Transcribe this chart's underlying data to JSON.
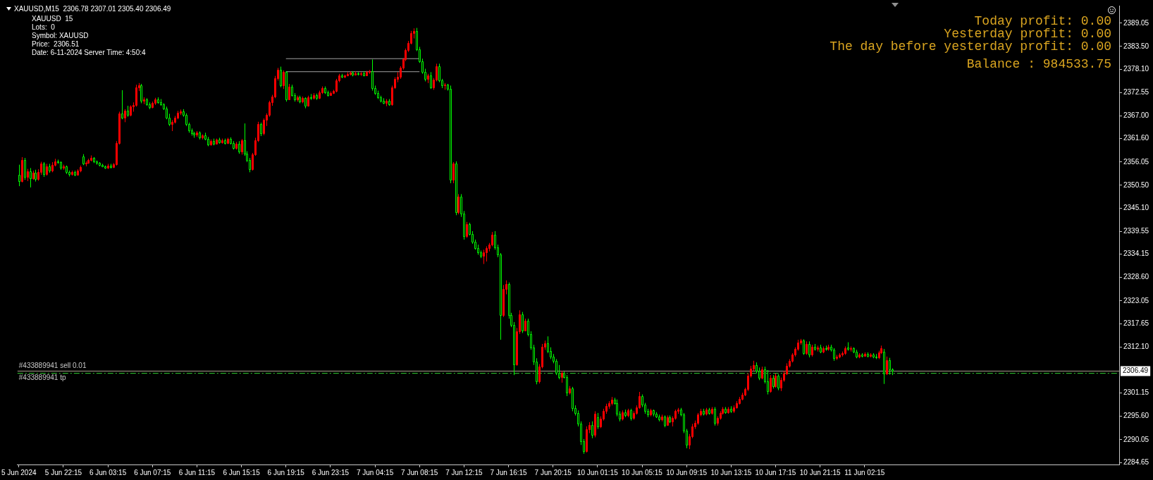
{
  "chart_data": {
    "type": "candlestick",
    "title": "XAUUSD,M15  2306.78 2307.01 2305.40 2306.49",
    "annotations": [
      "XAUUSD  15",
      "Lots:  0",
      "Symbol: XAUUSD",
      "Price:  2306.51",
      "Date: 6-11-2024 Server Time: 4:50:4",
      "Today profit: 0.00",
      "Yesterday profit: 0.00",
      "The day before yesterday profit: 0.00",
      "Balance : 984533.75",
      {
        "text": "#433889941 sell 0.01",
        "y": 2306.5
      }
    ],
    "categories": [
      "5 Jun 2024",
      null,
      null,
      null,
      null,
      null,
      null,
      null,
      null,
      null,
      null,
      null,
      null,
      null,
      null,
      null,
      "5 Jun 22:15",
      null,
      null,
      null,
      null,
      null,
      null,
      null,
      null,
      null,
      null,
      null,
      null,
      null,
      null,
      null,
      "6 Jun 03:15",
      null,
      null,
      null,
      null,
      null,
      null,
      null,
      null,
      null,
      null,
      null,
      null,
      null,
      null,
      null,
      "6 Jun 07:15",
      null,
      null,
      null,
      null,
      null,
      null,
      null,
      null,
      null,
      null,
      null,
      null,
      null,
      null,
      null,
      "6 Jun 11:15",
      null,
      null,
      null,
      null,
      null,
      null,
      null,
      null,
      null,
      null,
      null,
      null,
      null,
      null,
      null,
      "6 Jun 15:15",
      null,
      null,
      null,
      null,
      null,
      null,
      null,
      null,
      null,
      null,
      null,
      null,
      null,
      null,
      null,
      "6 Jun 19:15",
      null,
      null,
      null,
      null,
      null,
      null,
      null,
      null,
      null,
      null,
      null,
      null,
      null,
      null,
      null,
      "6 Jun 23:15",
      null,
      null,
      null,
      null,
      null,
      null,
      null,
      null,
      null,
      null,
      null,
      null,
      null,
      null,
      null,
      "7 Jun 04:15",
      null,
      null,
      null,
      null,
      null,
      null,
      null,
      null,
      null,
      null,
      null,
      null,
      null,
      null,
      null,
      "7 Jun 08:15",
      null,
      null,
      null,
      null,
      null,
      null,
      null,
      null,
      null,
      null,
      null,
      null,
      null,
      null,
      null,
      "7 Jun 12:15",
      null,
      null,
      null,
      null,
      null,
      null,
      null,
      null,
      null,
      null,
      null,
      null,
      null,
      null,
      null,
      "7 Jun 16:15",
      null,
      null,
      null,
      null,
      null,
      null,
      null,
      null,
      null,
      null,
      null,
      null,
      null,
      null,
      null,
      "7 Jun 20:15",
      null,
      null,
      null,
      null,
      null,
      null,
      null,
      null,
      null,
      null,
      null,
      null,
      null,
      null,
      null,
      "10 Jun 01:15",
      null,
      null,
      null,
      null,
      null,
      null,
      null,
      null,
      null,
      null,
      null,
      null,
      null,
      null,
      null,
      "10 Jun 05:15",
      null,
      null,
      null,
      null,
      null,
      null,
      null,
      null,
      null,
      null,
      null,
      null,
      null,
      null,
      null,
      "10 Jun 09:15",
      null,
      null,
      null,
      null,
      null,
      null,
      null,
      null,
      null,
      null,
      null,
      null,
      null,
      null,
      null,
      "10 Jun 13:15",
      null,
      null,
      null,
      null,
      null,
      null,
      null,
      null,
      null,
      null,
      null,
      null,
      null,
      null,
      null,
      "10 Jun 17:15",
      null,
      null,
      null,
      null,
      null,
      null,
      null,
      null,
      null,
      null,
      null,
      null,
      null,
      null,
      null,
      "10 Jun 21:15",
      null,
      null,
      null,
      null,
      null,
      null,
      null,
      null,
      null,
      null,
      null,
      null,
      null,
      null,
      null,
      "11 Jun 02:15",
      null,
      null,
      null,
      null,
      null,
      null,
      null,
      null,
      null,
      null,
      null,
      null,
      null,
      null,
      null,
      null,
      null,
      null,
      null,
      null,
      null,
      null,
      null,
      null,
      null,
      null,
      null,
      null,
      null,
      null,
      null,
      null,
      null,
      null,
      null,
      null,
      null,
      null,
      null,
      null,
      null,
      null,
      null,
      null,
      null,
      null,
      null,
      null,
      null,
      null,
      null,
      null,
      null,
      null,
      null,
      null,
      null,
      null,
      null,
      null,
      null,
      null,
      null,
      null,
      null,
      null,
      null,
      null,
      null,
      null,
      null,
      null,
      null,
      null,
      null,
      null,
      null,
      null,
      null,
      null,
      null,
      null,
      null,
      null,
      null,
      null,
      null,
      null,
      null,
      null,
      null
    ],
    "ohlc": [
      [
        2353.0,
        2355.4,
        2350.3,
        2351.5
      ],
      [
        2351.5,
        2357.2,
        2351.2,
        2356.5
      ],
      [
        2356.5,
        2357.0,
        2351.8,
        2352.5
      ],
      [
        2352.5,
        2354.4,
        2351.5,
        2353.8
      ],
      [
        2353.8,
        2354.6,
        2350.0,
        2352.2
      ],
      [
        2352.2,
        2354.0,
        2351.8,
        2353.5
      ],
      [
        2353.5,
        2354.2,
        2351.4,
        2352.0
      ],
      [
        2352.0,
        2354.3,
        2351.6,
        2353.6
      ],
      [
        2353.6,
        2356.1,
        2353.0,
        2355.6
      ],
      [
        2355.6,
        2356.0,
        2352.5,
        2353.1
      ],
      [
        2353.1,
        2355.6,
        2352.8,
        2355.0
      ],
      [
        2355.0,
        2355.6,
        2353.5,
        2354.0
      ],
      [
        2354.0,
        2356.0,
        2353.6,
        2355.4
      ],
      [
        2355.4,
        2356.8,
        2355.0,
        2356.2
      ],
      [
        2356.2,
        2356.6,
        2355.6,
        2356.0
      ],
      [
        2356.0,
        2356.2,
        2354.2,
        2354.6
      ],
      [
        2354.6,
        2355.4,
        2354.2,
        2355.0
      ],
      [
        2355.0,
        2355.2,
        2353.2,
        2353.6
      ],
      [
        2353.6,
        2354.0,
        2352.6,
        2353.2
      ],
      [
        2353.2,
        2354.0,
        2352.8,
        2353.6
      ],
      [
        2353.6,
        2354.0,
        2352.7,
        2353.0
      ],
      [
        2353.0,
        2354.3,
        2352.8,
        2354.0
      ],
      [
        2354.0,
        2355.2,
        2353.6,
        2354.8
      ],
      [
        2357.4,
        2357.9,
        2355.3,
        2355.6
      ],
      [
        2355.6,
        2356.2,
        2355.0,
        2355.9
      ],
      [
        2355.9,
        2356.8,
        2355.6,
        2356.5
      ],
      [
        2356.5,
        2357.6,
        2356.2,
        2357.0
      ],
      [
        2357.0,
        2357.2,
        2355.8,
        2356.1
      ],
      [
        2356.1,
        2356.4,
        2355.4,
        2355.8
      ],
      [
        2355.8,
        2356.0,
        2355.0,
        2355.3
      ],
      [
        2355.3,
        2355.6,
        2354.8,
        2355.0
      ],
      [
        2355.0,
        2355.2,
        2354.4,
        2354.6
      ],
      [
        2354.6,
        2355.6,
        2354.4,
        2355.2
      ],
      [
        2355.2,
        2355.6,
        2354.5,
        2354.8
      ],
      [
        2354.8,
        2355.8,
        2354.6,
        2355.5
      ],
      [
        2355.5,
        2361.0,
        2355.2,
        2360.6
      ],
      [
        2360.6,
        2368.0,
        2360.2,
        2367.5
      ],
      [
        2367.5,
        2373.1,
        2366.2,
        2366.5
      ],
      [
        2366.5,
        2368.6,
        2365.5,
        2368.2
      ],
      [
        2368.2,
        2369.4,
        2366.8,
        2367.2
      ],
      [
        2367.2,
        2369.5,
        2366.9,
        2369.2
      ],
      [
        2369.2,
        2370.2,
        2368.0,
        2369.6
      ],
      [
        2369.6,
        2374.4,
        2369.2,
        2373.8
      ],
      [
        2373.8,
        2374.8,
        2372.9,
        2374.3
      ],
      [
        2374.3,
        2374.6,
        2370.0,
        2370.6
      ],
      [
        2370.6,
        2371.4,
        2369.8,
        2371.0
      ],
      [
        2371.0,
        2371.2,
        2369.4,
        2369.8
      ],
      [
        2369.8,
        2370.2,
        2368.6,
        2369.0
      ],
      [
        2369.0,
        2370.4,
        2368.8,
        2370.0
      ],
      [
        2370.0,
        2371.3,
        2369.6,
        2370.9
      ],
      [
        2370.9,
        2371.4,
        2369.9,
        2370.2
      ],
      [
        2370.2,
        2371.0,
        2369.4,
        2369.7
      ],
      [
        2369.7,
        2370.0,
        2368.4,
        2368.8
      ],
      [
        2368.8,
        2369.2,
        2366.2,
        2366.6
      ],
      [
        2366.6,
        2367.5,
        2364.6,
        2365.0
      ],
      [
        2365.0,
        2366.0,
        2363.4,
        2365.6
      ],
      [
        2365.6,
        2367.0,
        2365.2,
        2366.6
      ],
      [
        2366.6,
        2368.2,
        2366.2,
        2367.8
      ],
      [
        2367.8,
        2368.5,
        2367.2,
        2368.0
      ],
      [
        2368.0,
        2368.6,
        2366.8,
        2367.3
      ],
      [
        2367.3,
        2367.6,
        2364.6,
        2365.0
      ],
      [
        2365.0,
        2365.4,
        2363.0,
        2363.5
      ],
      [
        2363.5,
        2364.0,
        2362.3,
        2362.8
      ],
      [
        2362.8,
        2363.2,
        2361.8,
        2362.5
      ],
      [
        2362.5,
        2363.4,
        2362.0,
        2363.0
      ],
      [
        2363.0,
        2363.3,
        2361.4,
        2361.8
      ],
      [
        2361.8,
        2362.6,
        2361.4,
        2362.3
      ],
      [
        2362.3,
        2363.0,
        2361.2,
        2361.6
      ],
      [
        2361.6,
        2362.0,
        2359.8,
        2360.2
      ],
      [
        2360.2,
        2361.4,
        2359.9,
        2361.0
      ],
      [
        2361.0,
        2361.6,
        2360.0,
        2360.4
      ],
      [
        2360.4,
        2361.6,
        2360.2,
        2361.3
      ],
      [
        2361.3,
        2361.8,
        2360.4,
        2360.7
      ],
      [
        2360.7,
        2361.6,
        2360.4,
        2361.2
      ],
      [
        2361.2,
        2361.6,
        2360.2,
        2360.6
      ],
      [
        2360.6,
        2361.8,
        2360.3,
        2361.5
      ],
      [
        2361.5,
        2361.9,
        2360.2,
        2360.5
      ],
      [
        2360.5,
        2361.0,
        2359.0,
        2359.4
      ],
      [
        2359.4,
        2360.8,
        2359.0,
        2360.4
      ],
      [
        2360.4,
        2361.0,
        2358.0,
        2358.5
      ],
      [
        2358.5,
        2361.5,
        2357.8,
        2361.2
      ],
      [
        2361.2,
        2365.2,
        2357.5,
        2358.0
      ],
      [
        2358.0,
        2358.6,
        2356.0,
        2356.5
      ],
      [
        2356.5,
        2357.0,
        2353.6,
        2354.4
      ],
      [
        2354.4,
        2358.2,
        2354.0,
        2357.8
      ],
      [
        2357.8,
        2361.8,
        2357.5,
        2361.2
      ],
      [
        2361.2,
        2365.6,
        2360.8,
        2365.0
      ],
      [
        2365.0,
        2365.4,
        2362.2,
        2362.8
      ],
      [
        2362.8,
        2366.4,
        2362.4,
        2366.0
      ],
      [
        2366.0,
        2367.6,
        2364.6,
        2367.2
      ],
      [
        2367.2,
        2370.6,
        2366.8,
        2370.2
      ],
      [
        2370.2,
        2372.0,
        2369.4,
        2371.6
      ],
      [
        2371.6,
        2376.5,
        2371.2,
        2376.0
      ],
      [
        2376.0,
        2378.4,
        2375.4,
        2377.9
      ],
      [
        2377.9,
        2378.7,
        2373.8,
        2374.2
      ],
      [
        2374.2,
        2377.8,
        2373.4,
        2377.4
      ],
      [
        2377.4,
        2377.6,
        2370.4,
        2371.0
      ],
      [
        2371.0,
        2374.6,
        2370.8,
        2374.0
      ],
      [
        2374.0,
        2374.4,
        2371.6,
        2372.0
      ],
      [
        2372.0,
        2372.4,
        2370.4,
        2370.9
      ],
      [
        2370.9,
        2371.8,
        2370.4,
        2371.4
      ],
      [
        2371.4,
        2371.8,
        2370.0,
        2370.4
      ],
      [
        2370.4,
        2371.6,
        2370.0,
        2371.2
      ],
      [
        2371.2,
        2371.4,
        2368.8,
        2369.4
      ],
      [
        2369.4,
        2371.8,
        2369.2,
        2371.5
      ],
      [
        2371.5,
        2372.2,
        2370.8,
        2371.2
      ],
      [
        2371.2,
        2372.4,
        2370.9,
        2372.0
      ],
      [
        2372.0,
        2372.3,
        2370.8,
        2371.2
      ],
      [
        2371.2,
        2373.0,
        2371.0,
        2372.6
      ],
      [
        2372.6,
        2374.0,
        2372.2,
        2373.6
      ],
      [
        2373.6,
        2374.0,
        2372.2,
        2372.6
      ],
      [
        2372.6,
        2373.0,
        2371.6,
        2372.0
      ],
      [
        2372.0,
        2372.8,
        2371.8,
        2372.5
      ],
      [
        2372.5,
        2373.2,
        2372.2,
        2372.9
      ],
      [
        2372.9,
        2375.8,
        2372.6,
        2375.4
      ],
      [
        2375.4,
        2377.0,
        2375.0,
        2376.6
      ],
      [
        2376.6,
        2377.0,
        2376.0,
        2376.3
      ],
      [
        2376.3,
        2376.8,
        2376.0,
        2376.6
      ],
      [
        2376.6,
        2377.4,
        2376.4,
        2377.0
      ],
      [
        2377.0,
        2377.6,
        2376.6,
        2377.3
      ],
      [
        2377.3,
        2377.6,
        2376.4,
        2376.8
      ],
      [
        2376.8,
        2377.6,
        2376.6,
        2377.2
      ],
      [
        2377.2,
        2377.4,
        2376.6,
        2376.9
      ],
      [
        2376.9,
        2377.4,
        2376.5,
        2377.1
      ],
      [
        2377.1,
        2377.6,
        2376.4,
        2376.7
      ],
      [
        2376.7,
        2377.7,
        2376.5,
        2377.4
      ],
      [
        2377.4,
        2377.9,
        2377.0,
        2377.6
      ],
      [
        2377.6,
        2380.4,
        2373.0,
        2373.6
      ],
      [
        2373.6,
        2374.2,
        2372.0,
        2372.4
      ],
      [
        2372.4,
        2373.0,
        2371.0,
        2371.4
      ],
      [
        2371.4,
        2371.8,
        2370.2,
        2370.6
      ],
      [
        2370.6,
        2371.2,
        2369.8,
        2370.0
      ],
      [
        2370.0,
        2371.0,
        2369.3,
        2370.6
      ],
      [
        2370.6,
        2371.0,
        2369.4,
        2369.8
      ],
      [
        2369.8,
        2374.2,
        2369.4,
        2373.8
      ],
      [
        2373.8,
        2376.2,
        2373.4,
        2375.8
      ],
      [
        2375.8,
        2377.4,
        2375.0,
        2376.2
      ],
      [
        2376.2,
        2378.8,
        2375.8,
        2378.4
      ],
      [
        2378.4,
        2380.8,
        2378.0,
        2380.4
      ],
      [
        2380.4,
        2383.0,
        2380.0,
        2382.6
      ],
      [
        2382.6,
        2384.8,
        2382.2,
        2384.4
      ],
      [
        2384.4,
        2387.2,
        2384.0,
        2386.6
      ],
      [
        2386.6,
        2387.8,
        2385.4,
        2387.2
      ],
      [
        2387.2,
        2387.9,
        2382.4,
        2382.8
      ],
      [
        2382.8,
        2383.4,
        2379.6,
        2380.0
      ],
      [
        2380.0,
        2380.6,
        2377.0,
        2377.4
      ],
      [
        2377.4,
        2378.2,
        2375.2,
        2375.8
      ],
      [
        2375.8,
        2377.0,
        2374.8,
        2376.6
      ],
      [
        2376.6,
        2377.4,
        2373.4,
        2373.8
      ],
      [
        2373.8,
        2376.0,
        2373.2,
        2375.6
      ],
      [
        2375.6,
        2379.4,
        2375.2,
        2378.8
      ],
      [
        2378.8,
        2379.4,
        2375.0,
        2375.4
      ],
      [
        2375.4,
        2375.8,
        2373.6,
        2374.2
      ],
      [
        2374.2,
        2374.8,
        2373.2,
        2374.4
      ],
      [
        2374.4,
        2374.6,
        2373.0,
        2373.4
      ],
      [
        2373.4,
        2374.2,
        2351.0,
        2351.8
      ],
      [
        2351.8,
        2356.0,
        2351.0,
        2355.6
      ],
      [
        2355.6,
        2356.2,
        2343.4,
        2344.2
      ],
      [
        2344.2,
        2348.4,
        2343.6,
        2347.8
      ],
      [
        2347.8,
        2348.4,
        2343.0,
        2343.8
      ],
      [
        2343.8,
        2344.4,
        2337.6,
        2338.4
      ],
      [
        2338.4,
        2341.8,
        2338.0,
        2341.2
      ],
      [
        2341.2,
        2341.6,
        2338.6,
        2339.0
      ],
      [
        2339.0,
        2339.6,
        2336.6,
        2337.0
      ],
      [
        2337.0,
        2337.6,
        2335.2,
        2335.6
      ],
      [
        2335.6,
        2336.4,
        2334.0,
        2334.6
      ],
      [
        2334.6,
        2335.0,
        2333.2,
        2333.8
      ],
      [
        2333.8,
        2335.2,
        2331.8,
        2334.6
      ],
      [
        2334.6,
        2336.0,
        2332.4,
        2335.6
      ],
      [
        2335.6,
        2336.8,
        2334.8,
        2336.4
      ],
      [
        2336.4,
        2339.4,
        2336.0,
        2338.8
      ],
      [
        2338.8,
        2339.6,
        2335.2,
        2335.8
      ],
      [
        2335.8,
        2336.4,
        2333.4,
        2334.0
      ],
      [
        2334.0,
        2334.4,
        2313.8,
        2319.6
      ],
      [
        2319.6,
        2326.8,
        2319.2,
        2325.8
      ],
      [
        2325.8,
        2327.9,
        2324.6,
        2327.0
      ],
      [
        2327.0,
        2327.4,
        2318.8,
        2319.6
      ],
      [
        2319.6,
        2320.2,
        2316.8,
        2317.4
      ],
      [
        2317.4,
        2318.0,
        2305.4,
        2308.0
      ],
      [
        2308.0,
        2316.6,
        2307.6,
        2315.8
      ],
      [
        2315.8,
        2320.8,
        2315.2,
        2319.8
      ],
      [
        2319.8,
        2320.4,
        2315.4,
        2316.0
      ],
      [
        2316.0,
        2318.8,
        2315.8,
        2318.4
      ],
      [
        2318.4,
        2318.8,
        2314.6,
        2315.2
      ],
      [
        2315.2,
        2315.8,
        2311.4,
        2312.0
      ],
      [
        2312.0,
        2312.6,
        2307.8,
        2308.6
      ],
      [
        2308.6,
        2309.4,
        2303.2,
        2304.0
      ],
      [
        2304.0,
        2308.0,
        2303.4,
        2307.4
      ],
      [
        2307.4,
        2312.8,
        2307.0,
        2312.2
      ],
      [
        2312.2,
        2313.6,
        2311.4,
        2313.0
      ],
      [
        2313.0,
        2314.6,
        2310.6,
        2311.2
      ],
      [
        2311.2,
        2312.0,
        2309.2,
        2309.8
      ],
      [
        2309.8,
        2310.4,
        2308.2,
        2308.8
      ],
      [
        2308.8,
        2309.2,
        2305.4,
        2306.0
      ],
      [
        2306.0,
        2307.8,
        2304.4,
        2305.0
      ],
      [
        2305.0,
        2306.4,
        2303.6,
        2306.0
      ],
      [
        2306.0,
        2306.2,
        2304.6,
        2305.0
      ],
      [
        2305.0,
        2305.4,
        2300.4,
        2301.2
      ],
      [
        2301.2,
        2302.8,
        2300.8,
        2302.2
      ],
      [
        2302.2,
        2302.6,
        2296.8,
        2297.6
      ],
      [
        2297.6,
        2298.2,
        2295.8,
        2296.4
      ],
      [
        2296.4,
        2297.0,
        2293.2,
        2293.8
      ],
      [
        2293.8,
        2294.4,
        2288.8,
        2289.6
      ],
      [
        2289.6,
        2290.2,
        2286.7,
        2287.4
      ],
      [
        2287.4,
        2293.2,
        2287.0,
        2292.6
      ],
      [
        2292.6,
        2294.2,
        2291.6,
        2293.6
      ],
      [
        2293.6,
        2294.4,
        2290.4,
        2291.2
      ],
      [
        2291.2,
        2296.8,
        2290.6,
        2296.2
      ],
      [
        2295.4,
        2296.4,
        2292.6,
        2293.2
      ],
      [
        2293.2,
        2295.6,
        2292.8,
        2295.0
      ],
      [
        2295.0,
        2297.4,
        2294.6,
        2296.8
      ],
      [
        2296.8,
        2298.6,
        2296.2,
        2298.0
      ],
      [
        2298.0,
        2299.2,
        2297.4,
        2298.8
      ],
      [
        2298.8,
        2300.2,
        2298.2,
        2299.6
      ],
      [
        2299.6,
        2300.0,
        2298.4,
        2298.8
      ],
      [
        2298.8,
        2299.6,
        2295.6,
        2296.2
      ],
      [
        2296.2,
        2296.8,
        2294.4,
        2295.0
      ],
      [
        2295.0,
        2297.0,
        2294.6,
        2296.6
      ],
      [
        2296.6,
        2297.2,
        2295.4,
        2295.8
      ],
      [
        2295.8,
        2297.4,
        2295.4,
        2297.0
      ],
      [
        2297.0,
        2297.4,
        2294.6,
        2295.2
      ],
      [
        2295.2,
        2296.8,
        2294.8,
        2296.4
      ],
      [
        2296.4,
        2298.2,
        2296.0,
        2297.8
      ],
      [
        2297.8,
        2301.4,
        2297.4,
        2300.4
      ],
      [
        2300.4,
        2300.8,
        2297.8,
        2298.4
      ],
      [
        2298.4,
        2298.8,
        2296.2,
        2296.8
      ],
      [
        2296.8,
        2297.4,
        2295.4,
        2296.0
      ],
      [
        2296.0,
        2297.4,
        2295.6,
        2297.0
      ],
      [
        2297.0,
        2297.2,
        2295.6,
        2296.2
      ],
      [
        2296.2,
        2296.6,
        2295.2,
        2295.6
      ],
      [
        2295.6,
        2296.0,
        2294.4,
        2294.8
      ],
      [
        2294.8,
        2296.0,
        2294.4,
        2295.6
      ],
      [
        2295.6,
        2295.8,
        2293.0,
        2293.6
      ],
      [
        2293.6,
        2295.8,
        2293.4,
        2295.4
      ],
      [
        2295.4,
        2295.8,
        2294.0,
        2294.4
      ],
      [
        2294.4,
        2295.6,
        2293.2,
        2295.2
      ],
      [
        2295.2,
        2297.2,
        2294.8,
        2296.8
      ],
      [
        2296.8,
        2297.6,
        2296.2,
        2297.2
      ],
      [
        2297.2,
        2297.6,
        2295.6,
        2296.0
      ],
      [
        2296.0,
        2296.4,
        2291.6,
        2292.2
      ],
      [
        2292.2,
        2292.6,
        2288.0,
        2288.8
      ],
      [
        2288.8,
        2291.4,
        2287.8,
        2290.8
      ],
      [
        2290.8,
        2293.8,
        2290.4,
        2293.2
      ],
      [
        2293.2,
        2294.6,
        2292.6,
        2294.0
      ],
      [
        2294.0,
        2296.4,
        2293.6,
        2296.0
      ],
      [
        2296.0,
        2297.4,
        2295.6,
        2296.8
      ],
      [
        2296.8,
        2297.4,
        2295.8,
        2296.2
      ],
      [
        2296.2,
        2297.6,
        2295.8,
        2297.2
      ],
      [
        2297.2,
        2297.6,
        2296.0,
        2296.4
      ],
      [
        2296.4,
        2297.8,
        2296.0,
        2297.4
      ],
      [
        2297.4,
        2297.8,
        2293.4,
        2294.0
      ],
      [
        2294.0,
        2295.6,
        2293.4,
        2295.2
      ],
      [
        2295.2,
        2296.8,
        2294.8,
        2296.4
      ],
      [
        2296.4,
        2297.8,
        2296.0,
        2297.4
      ],
      [
        2297.4,
        2297.8,
        2296.2,
        2296.6
      ],
      [
        2296.6,
        2297.8,
        2296.2,
        2297.4
      ],
      [
        2297.4,
        2298.0,
        2296.4,
        2296.8
      ],
      [
        2296.8,
        2298.2,
        2296.4,
        2297.8
      ],
      [
        2297.8,
        2299.2,
        2297.4,
        2298.8
      ],
      [
        2298.8,
        2300.2,
        2298.4,
        2299.8
      ],
      [
        2299.8,
        2301.2,
        2299.4,
        2300.8
      ],
      [
        2300.8,
        2302.4,
        2300.4,
        2302.0
      ],
      [
        2302.0,
        2305.8,
        2301.6,
        2305.2
      ],
      [
        2305.2,
        2307.6,
        2304.8,
        2307.0
      ],
      [
        2307.0,
        2308.8,
        2306.4,
        2307.8
      ],
      [
        2307.8,
        2308.4,
        2305.8,
        2306.4
      ],
      [
        2306.4,
        2307.2,
        2304.2,
        2304.8
      ],
      [
        2304.8,
        2307.4,
        2304.4,
        2306.8
      ],
      [
        2306.8,
        2307.4,
        2303.4,
        2304.0
      ],
      [
        2304.0,
        2306.6,
        2300.8,
        2301.6
      ],
      [
        2301.6,
        2305.4,
        2301.2,
        2304.8
      ],
      [
        2304.8,
        2305.4,
        2302.2,
        2302.8
      ],
      [
        2302.8,
        2305.8,
        2302.4,
        2305.2
      ],
      [
        2305.2,
        2305.6,
        2301.8,
        2302.4
      ],
      [
        2302.4,
        2304.8,
        2301.6,
        2304.2
      ],
      [
        2304.2,
        2306.4,
        2303.8,
        2305.8
      ],
      [
        2305.8,
        2308.2,
        2305.4,
        2307.6
      ],
      [
        2307.6,
        2309.2,
        2307.2,
        2308.8
      ],
      [
        2308.8,
        2310.6,
        2308.4,
        2310.2
      ],
      [
        2310.2,
        2312.0,
        2309.8,
        2311.6
      ],
      [
        2311.6,
        2313.8,
        2311.2,
        2313.2
      ],
      [
        2313.2,
        2314.0,
        2312.6,
        2313.6
      ],
      [
        2313.6,
        2313.9,
        2310.2,
        2310.6
      ],
      [
        2310.6,
        2313.4,
        2310.2,
        2312.8
      ],
      [
        2312.8,
        2313.4,
        2309.6,
        2310.2
      ],
      [
        2310.2,
        2312.6,
        2309.8,
        2312.2
      ],
      [
        2312.2,
        2312.8,
        2311.2,
        2311.6
      ],
      [
        2311.6,
        2312.4,
        2311.0,
        2312.0
      ],
      [
        2312.0,
        2312.6,
        2310.6,
        2311.0
      ],
      [
        2311.0,
        2312.2,
        2310.6,
        2311.8
      ],
      [
        2311.8,
        2312.4,
        2311.2,
        2311.6
      ],
      [
        2311.6,
        2312.6,
        2311.2,
        2312.2
      ],
      [
        2312.2,
        2312.6,
        2311.0,
        2311.4
      ],
      [
        2311.4,
        2311.8,
        2308.8,
        2309.4
      ],
      [
        2309.4,
        2310.2,
        2309.0,
        2309.8
      ],
      [
        2309.8,
        2310.6,
        2309.4,
        2310.2
      ],
      [
        2310.2,
        2311.0,
        2309.8,
        2310.6
      ],
      [
        2310.6,
        2312.2,
        2310.2,
        2311.8
      ],
      [
        2312.0,
        2313.2,
        2311.2,
        2311.6
      ],
      [
        2311.6,
        2312.2,
        2311.0,
        2311.8
      ],
      [
        2311.8,
        2312.0,
        2310.6,
        2311.0
      ],
      [
        2311.0,
        2311.4,
        2309.4,
        2309.8
      ],
      [
        2309.8,
        2310.6,
        2309.4,
        2310.2
      ],
      [
        2310.2,
        2310.6,
        2309.6,
        2310.0
      ],
      [
        2310.0,
        2310.8,
        2309.8,
        2310.4
      ],
      [
        2310.4,
        2310.8,
        2309.6,
        2309.9
      ],
      [
        2309.9,
        2310.6,
        2309.6,
        2310.3
      ],
      [
        2310.3,
        2310.6,
        2309.4,
        2309.8
      ],
      [
        2309.8,
        2310.4,
        2309.2,
        2309.6
      ],
      [
        2309.6,
        2311.2,
        2309.2,
        2310.8
      ],
      [
        2310.8,
        2312.4,
        2310.4,
        2311.8
      ],
      [
        2310.9,
        2311.6,
        2303.3,
        2305.8
      ],
      [
        2305.8,
        2309.8,
        2305.4,
        2309.0
      ],
      [
        2309.0,
        2309.5,
        2305.5,
        2306.8
      ],
      [
        2306.78,
        2307.01,
        2305.4,
        2306.49
      ],
      null,
      null,
      null,
      null,
      null,
      null,
      null,
      null,
      null,
      null,
      null,
      null,
      null,
      null,
      null,
      null,
      null,
      null,
      null,
      null,
      null,
      null,
      null,
      null,
      null,
      null,
      null,
      null,
      null,
      null,
      null,
      null,
      null,
      null,
      null,
      null,
      null,
      null,
      null,
      null,
      null,
      null,
      null,
      null,
      null,
      null,
      null,
      null,
      null,
      null,
      null,
      null,
      null,
      null,
      null,
      null,
      null,
      null,
      null,
      null,
      null,
      null,
      null,
      null,
      null,
      null,
      null,
      null,
      null,
      null,
      null,
      null,
      null,
      null,
      null,
      null,
      null,
      null,
      null,
      null,
      null
    ],
    "colors": [
      "#00ff00",
      "#ff0000",
      "#00ff00",
      "#ff0000",
      "#00ff00",
      "#ff0000",
      "#00ff00",
      "#ff0000",
      "#ff0000",
      "#00ff00",
      "#ff0000",
      "#00ff00",
      "#ff0000",
      "#ff0000",
      "#00ff00",
      "#00ff00",
      "#ff0000",
      "#00ff00",
      "#00ff00",
      "#ff0000",
      "#00ff00",
      "#ff0000",
      "#ff0000",
      "#00ff00",
      "#ff0000",
      "#ff0000",
      "#ff0000",
      "#00ff00",
      "#00ff00",
      "#00ff00",
      "#00ff00",
      "#00ff00",
      "#ff0000",
      "#00ff00",
      "#ff0000",
      "#ff0000",
      "#ff0000",
      "#00ff00",
      "#ff0000",
      "#00ff00",
      "#ff0000",
      "#ff0000",
      "#ff0000",
      "#ff0000",
      "#00ff00",
      "#ff0000",
      "#00ff00",
      "#00ff00",
      "#ff0000",
      "#ff0000",
      "#00ff00",
      "#00ff00",
      "#00ff00",
      "#00ff00",
      "#00ff00",
      "#ff0000",
      "#ff0000",
      "#ff0000",
      "#ff0000",
      "#00ff00",
      "#00ff00",
      "#00ff00",
      "#00ff00",
      "#00ff00",
      "#ff0000",
      "#00ff00",
      "#ff0000",
      "#00ff00",
      "#00ff00",
      "#ff0000",
      "#00ff00",
      "#ff0000",
      "#00ff00",
      "#ff0000",
      "#00ff00",
      "#ff0000",
      "#00ff00",
      "#00ff00",
      "#ff0000",
      "#00ff00",
      "#ff0000",
      "#00ff00",
      "#00ff00",
      "#00ff00",
      "#ff0000",
      "#ff0000",
      "#ff0000",
      "#00ff00",
      "#ff0000",
      "#ff0000",
      "#ff0000",
      "#ff0000",
      "#ff0000",
      "#ff0000",
      "#00ff00",
      "#ff0000",
      "#00ff00",
      "#ff0000",
      "#00ff00",
      "#00ff00",
      "#ff0000",
      "#00ff00",
      "#ff0000",
      "#00ff00",
      "#ff0000",
      "#00ff00",
      "#ff0000",
      "#00ff00",
      "#ff0000",
      "#ff0000",
      "#00ff00",
      "#00ff00",
      "#ff0000",
      "#ff0000",
      "#ff0000",
      "#ff0000",
      "#00ff00",
      "#ff0000",
      "#ff0000",
      "#ff0000",
      "#00ff00",
      "#ff0000",
      "#00ff00",
      "#ff0000",
      "#00ff00",
      "#ff0000",
      "#ff0000",
      "#00ff00",
      "#00ff00",
      "#00ff00",
      "#00ff00",
      "#00ff00",
      "#ff0000",
      "#00ff00",
      "#ff0000",
      "#ff0000",
      "#ff0000",
      "#ff0000",
      "#ff0000",
      "#ff0000",
      "#ff0000",
      "#ff0000",
      "#ff0000",
      "#00ff00",
      "#00ff00",
      "#00ff00",
      "#00ff00",
      "#ff0000",
      "#00ff00",
      "#ff0000",
      "#ff0000",
      "#00ff00",
      "#00ff00",
      "#ff0000",
      "#00ff00",
      "#00ff00",
      "#ff0000",
      "#00ff00",
      "#ff0000",
      "#00ff00",
      "#00ff00",
      "#ff0000",
      "#00ff00",
      "#00ff00",
      "#00ff00",
      "#00ff00",
      "#00ff00",
      "#ff0000",
      "#ff0000",
      "#ff0000",
      "#ff0000",
      "#00ff00",
      "#00ff00",
      "#00ff00",
      "#ff0000",
      "#ff0000",
      "#00ff00",
      "#00ff00",
      "#00ff00",
      "#ff0000",
      "#ff0000",
      "#00ff00",
      "#ff0000",
      "#00ff00",
      "#00ff00",
      "#00ff00",
      "#00ff00",
      "#ff0000",
      "#ff0000",
      "#ff0000",
      "#00ff00",
      "#00ff00",
      "#00ff00",
      "#00ff00",
      "#00ff00",
      "#ff0000",
      "#00ff00",
      "#00ff00",
      "#ff0000",
      "#00ff00",
      "#00ff00",
      "#00ff00",
      "#00ff00",
      "#00ff00",
      "#ff0000",
      "#ff0000",
      "#00ff00",
      "#ff0000",
      "#00ff00",
      "#ff0000",
      "#ff0000",
      "#ff0000",
      "#ff0000",
      "#ff0000",
      "#00ff00",
      "#00ff00",
      "#00ff00",
      "#ff0000",
      "#00ff00",
      "#ff0000",
      "#00ff00",
      "#ff0000",
      "#ff0000",
      "#ff0000",
      "#00ff00",
      "#00ff00",
      "#00ff00",
      "#ff0000",
      "#00ff00",
      "#00ff00",
      "#00ff00",
      "#ff0000",
      "#00ff00",
      "#ff0000",
      "#00ff00",
      "#ff0000",
      "#ff0000",
      "#ff0000",
      "#00ff00",
      "#00ff00",
      "#00ff00",
      "#ff0000",
      "#ff0000",
      "#ff0000",
      "#ff0000",
      "#ff0000",
      "#00ff00",
      "#ff0000",
      "#00ff00",
      "#ff0000",
      "#00ff00",
      "#ff0000",
      "#ff0000",
      "#ff0000",
      "#00ff00",
      "#ff0000",
      "#00ff00",
      "#ff0000",
      "#ff0000",
      "#ff0000",
      "#ff0000",
      "#ff0000",
      "#ff0000",
      "#ff0000",
      "#ff0000",
      "#00ff00",
      "#00ff00",
      "#ff0000",
      "#00ff00",
      "#00ff00",
      "#ff0000",
      "#00ff00",
      "#ff0000",
      "#00ff00",
      "#ff0000",
      "#ff0000",
      "#ff0000",
      "#ff0000",
      "#ff0000",
      "#ff0000",
      "#ff0000",
      "#ff0000",
      "#00ff00",
      "#ff0000",
      "#00ff00",
      "#ff0000",
      "#00ff00",
      "#ff0000",
      "#00ff00",
      "#ff0000",
      "#00ff00",
      "#ff0000",
      "#00ff00",
      "#00ff00",
      "#ff0000",
      "#ff0000",
      "#ff0000",
      "#ff0000",
      "#00ff00",
      "#ff0000",
      "#00ff00",
      "#00ff00",
      "#ff0000",
      "#00ff00",
      "#ff0000",
      "#00ff00",
      "#ff0000",
      "#00ff00",
      "#00ff00",
      "#ff0000",
      "#ff0000",
      "#00ff00",
      "#ff0000",
      "#00ff00",
      "#00ff00",
      null,
      null,
      null,
      null,
      null,
      null,
      null,
      null,
      null,
      null,
      null,
      null,
      null,
      null,
      null,
      null,
      null,
      null,
      null,
      null,
      null,
      null,
      null,
      null,
      null,
      null,
      null,
      null,
      null,
      null,
      null,
      null,
      null,
      null,
      null,
      null,
      null,
      null,
      null,
      null,
      null,
      null,
      null,
      null,
      null,
      null,
      null,
      null,
      null,
      null,
      null,
      null,
      null,
      null,
      null,
      null,
      null,
      null,
      null,
      null,
      null,
      null,
      null,
      null,
      null,
      null,
      null,
      null,
      null,
      null,
      null,
      null,
      null,
      null,
      null,
      null,
      null,
      null,
      null,
      null,
      null
    ],
    "series": [
      {
        "type": "line",
        "x": [
          "6 Jun 19:15",
          "7 Jun 08:15"
        ],
        "values": [
          2380.6,
          2380.6
        ],
        "color": "#a0a0a0"
      },
      {
        "type": "line",
        "x": [
          "6 Jun 19:15",
          "7 Jun 08:15"
        ],
        "values": [
          2377.5,
          2377.5
        ],
        "color": "#a0a0a0"
      }
    ],
    "ylim": [
      2284.15,
      2393.2
    ],
    "yticks": [
      2389.05,
      {
        "value": 2383.5,
        "label": "2383.50"
      },
      {
        "value": 2378.1,
        "label": "2378.10"
      },
      2372.55,
      {
        "value": 2367,
        "label": "2367.00"
      },
      {
        "value": 2361.6,
        "label": "2361.60"
      },
      2356.05,
      {
        "value": 2350.5,
        "label": "2350.50"
      },
      {
        "value": 2345.1,
        "label": "2345.10"
      },
      2339.55,
      2334.15,
      {
        "value": 2328.6,
        "label": "2328.60"
      },
      2323.05,
      2317.65,
      {
        "value": 2312.1,
        "label": "2312.10"
      },
      2301.15,
      {
        "value": 2295.6,
        "label": "2295.60"
      },
      2290.05,
      2284.65
    ],
    "ref_lines": [
      {
        "axis": "y",
        "value": 2306.0,
        "label": "#433889941 tp",
        "color": "#32cd32",
        "line_style": "dashed"
      },
      {
        "axis": "y",
        "value": 2306.49,
        "label": "2306.49",
        "color": "#a89c8c",
        "line_style": "solid"
      }
    ]
  }
}
